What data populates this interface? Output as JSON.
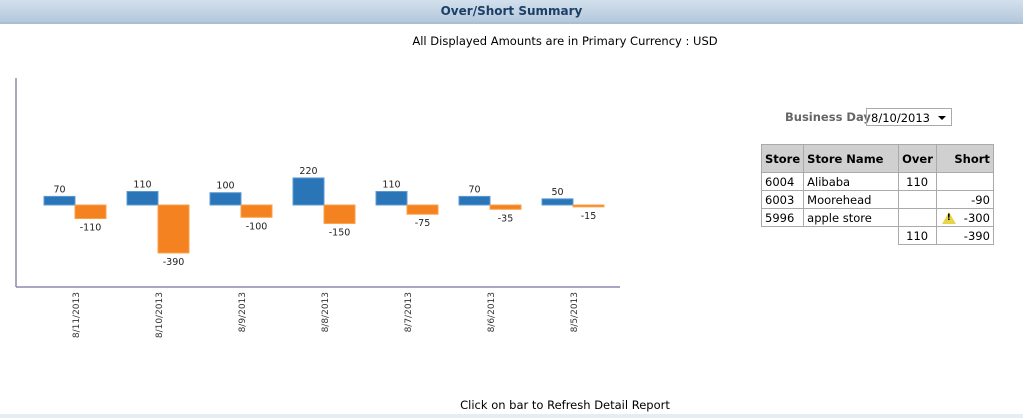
{
  "header": {
    "title": "Over/Short Summary"
  },
  "currency_note": "All Displayed Amounts are in Primary Currency : USD",
  "chart_data": {
    "type": "bar",
    "categories": [
      "8/11/2013",
      "8/10/2013",
      "8/9/2013",
      "8/8/2013",
      "8/7/2013",
      "8/6/2013",
      "8/5/2013"
    ],
    "series": [
      {
        "values": [
          70,
          110,
          100,
          220,
          110,
          70,
          50
        ],
        "color": "#2a74b8"
      },
      {
        "values": [
          -110,
          -390,
          -100,
          -150,
          -75,
          -35,
          -15
        ],
        "color": "#f48220"
      }
    ],
    "grid": false
  },
  "business_day": {
    "label": "Business Day",
    "value": "8/10/2013"
  },
  "table": {
    "headers": [
      "Store",
      "Store Name",
      "Over",
      "Short"
    ],
    "rows": [
      {
        "store": "6004",
        "name": "Alibaba",
        "over": "110",
        "short": ""
      },
      {
        "store": "6003",
        "name": "Moorehead",
        "over": "",
        "short": "-90"
      },
      {
        "store": "5996",
        "name": "apple store",
        "over": "",
        "short": "-300",
        "warning": true
      }
    ],
    "totals": {
      "over": "110",
      "short": "-390"
    }
  },
  "footer": "Click on bar to Refresh Detail Report"
}
